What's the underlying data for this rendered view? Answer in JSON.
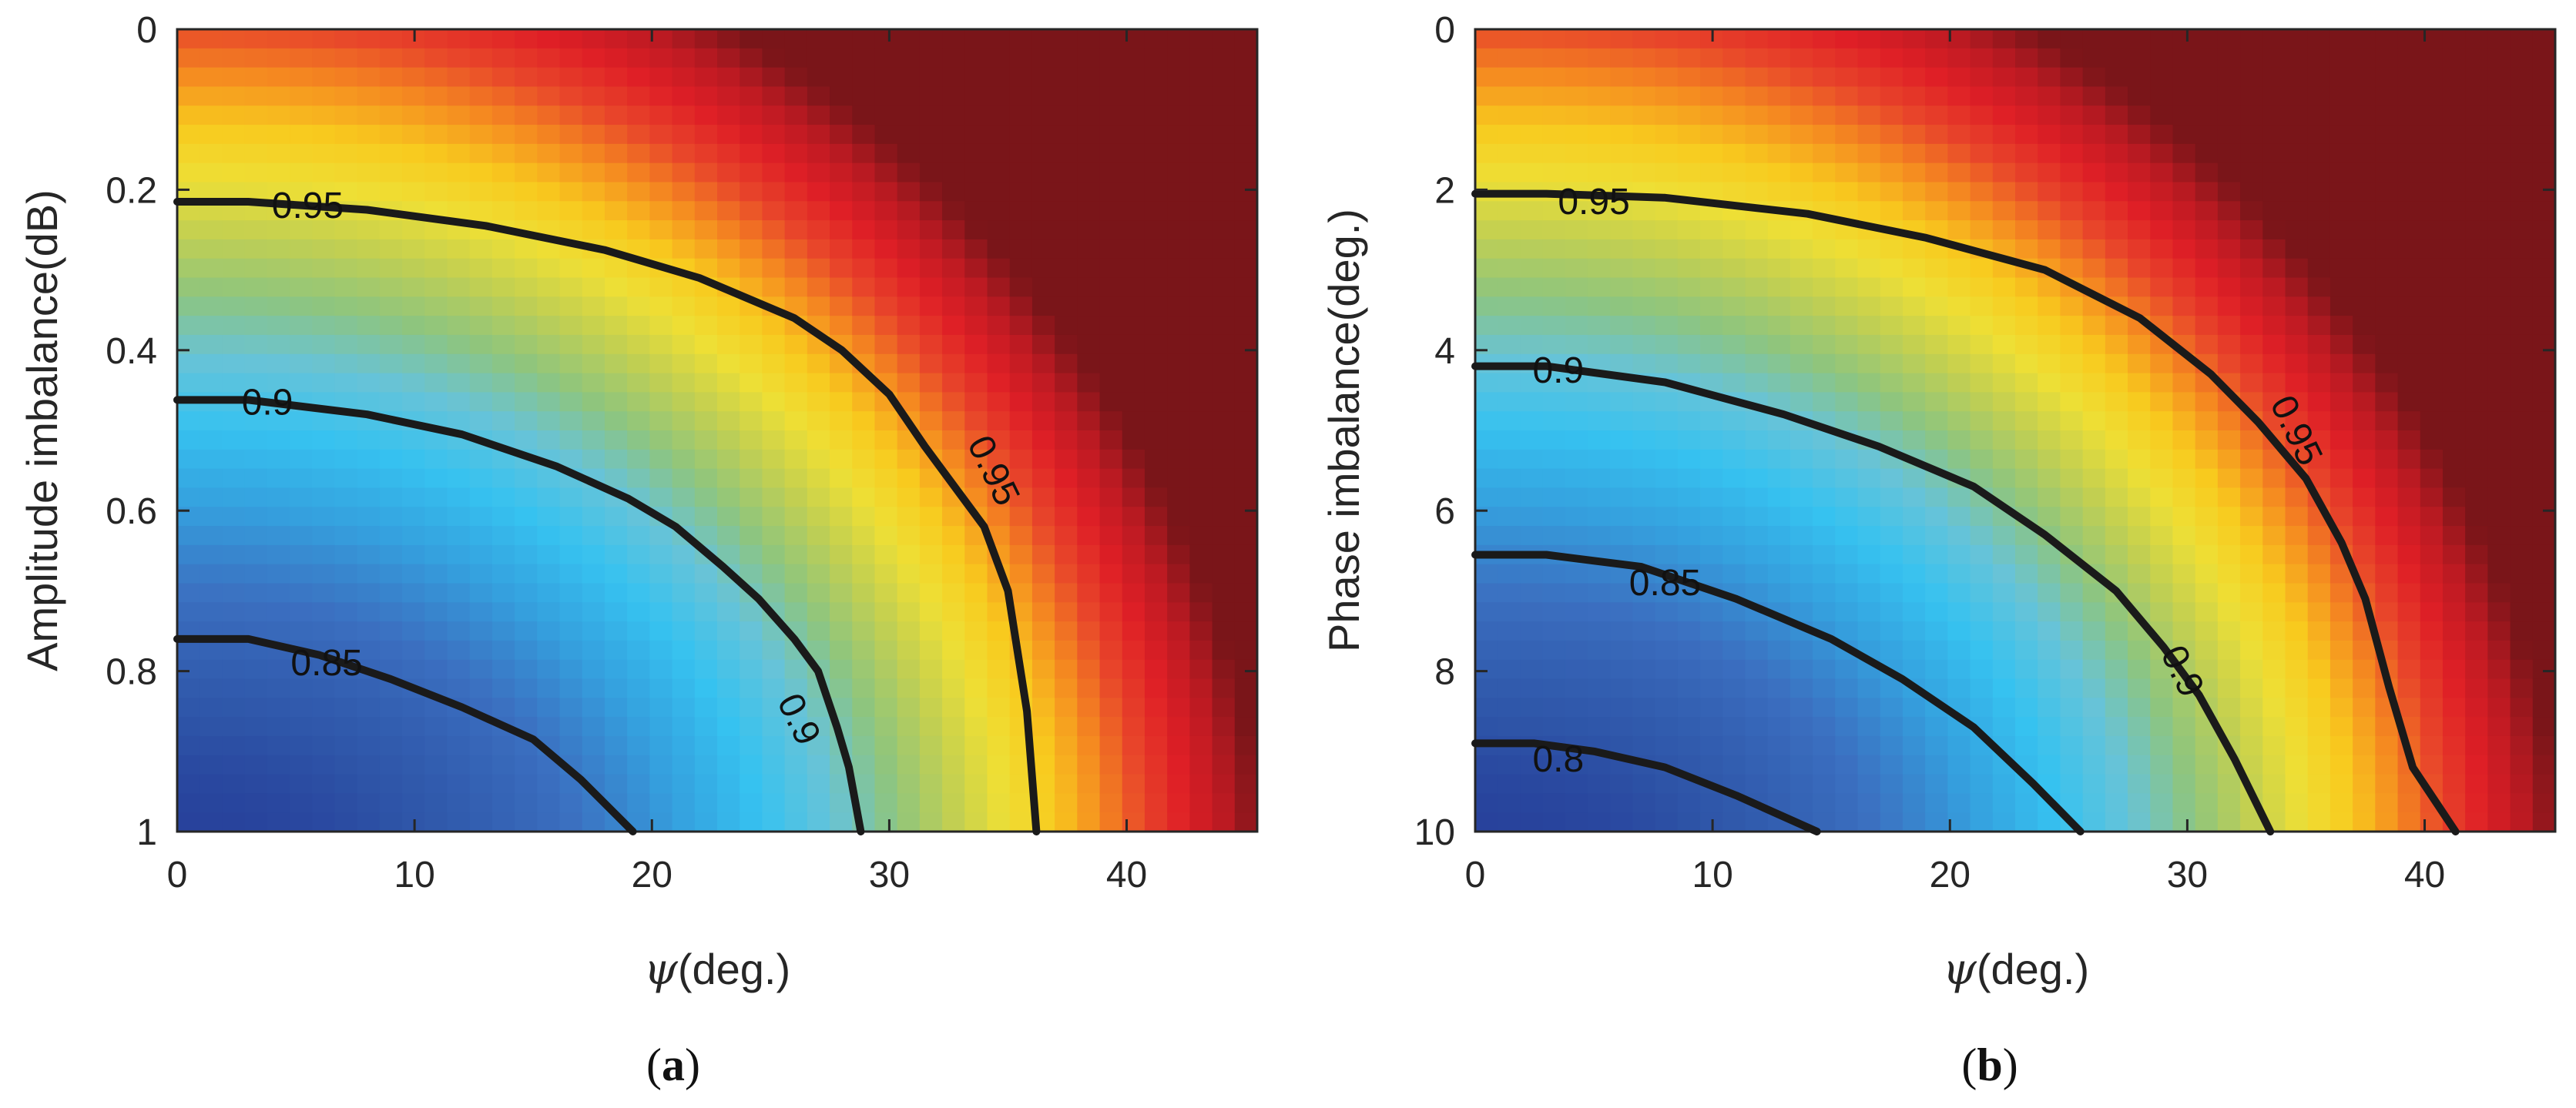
{
  "chart_data": [
    {
      "type": "heatmap",
      "panel_label": "a",
      "caption_open": "(",
      "caption_close": ")",
      "xlabel_symbol": "ψ",
      "xlabel_unit": "(deg.)",
      "ylabel": "Amplitude imbalance(dB)",
      "xlim": [
        0,
        45.5
      ],
      "ylim": [
        1,
        0
      ],
      "xticks": [
        0,
        10,
        20,
        30,
        40
      ],
      "yticks": [
        0,
        0.2,
        0.4,
        0.6,
        0.8,
        1
      ],
      "ytick_labels": [
        "0",
        "0.2",
        "0.4",
        "0.6",
        "0.8",
        "1"
      ],
      "grid": false,
      "contours": [
        {
          "level_label": "0.95",
          "points": [
            [
              0,
              0.215
            ],
            [
              3,
              0.215
            ],
            [
              8,
              0.225
            ],
            [
              13,
              0.245
            ],
            [
              18,
              0.275
            ],
            [
              22,
              0.31
            ],
            [
              26,
              0.36
            ],
            [
              28,
              0.4
            ],
            [
              30,
              0.455
            ],
            [
              31.5,
              0.52
            ],
            [
              33,
              0.58
            ],
            [
              34,
              0.62
            ],
            [
              35,
              0.7
            ],
            [
              35.8,
              0.85
            ],
            [
              36.2,
              1.0
            ]
          ],
          "label_at": [
            5.5,
            0.22
          ]
        },
        {
          "level_label": "0.9",
          "points": [
            [
              0,
              0.462
            ],
            [
              3,
              0.462
            ],
            [
              8,
              0.48
            ],
            [
              12,
              0.505
            ],
            [
              16,
              0.545
            ],
            [
              19,
              0.585
            ],
            [
              21,
              0.62
            ],
            [
              23,
              0.67
            ],
            [
              24.5,
              0.71
            ],
            [
              26,
              0.76
            ],
            [
              27,
              0.8
            ],
            [
              27.8,
              0.87
            ],
            [
              28.3,
              0.92
            ],
            [
              28.8,
              1.0
            ]
          ],
          "label_at": [
            3.8,
            0.465
          ]
        },
        {
          "level_label": "0.85",
          "points": [
            [
              0,
              0.76
            ],
            [
              3,
              0.76
            ],
            [
              6,
              0.78
            ],
            [
              9,
              0.81
            ],
            [
              12,
              0.845
            ],
            [
              15,
              0.885
            ],
            [
              17,
              0.935
            ],
            [
              19.2,
              1.0
            ]
          ],
          "label_at": [
            6.3,
            0.79
          ]
        }
      ],
      "contour_label_positions": [
        {
          "label": "0.95",
          "x": 34.4,
          "y": 0.55
        },
        {
          "label": "0.9",
          "x": 26.2,
          "y": 0.86
        }
      ]
    },
    {
      "type": "heatmap",
      "panel_label": "b",
      "caption_open": "(",
      "caption_close": ")",
      "xlabel_symbol": "ψ",
      "xlabel_unit": "(deg.)",
      "ylabel": "Phase imbalance(deg.)",
      "xlim": [
        0,
        45.5
      ],
      "ylim": [
        10,
        0
      ],
      "xticks": [
        0,
        10,
        20,
        30,
        40
      ],
      "yticks": [
        0,
        2,
        4,
        6,
        8,
        10
      ],
      "ytick_labels": [
        "0",
        "2",
        "4",
        "6",
        "8",
        "10"
      ],
      "grid": false,
      "contours": [
        {
          "level_label": "0.95",
          "points": [
            [
              0,
              2.05
            ],
            [
              3,
              2.05
            ],
            [
              8,
              2.1
            ],
            [
              14,
              2.3
            ],
            [
              19,
              2.6
            ],
            [
              24,
              3.0
            ],
            [
              28,
              3.6
            ],
            [
              31,
              4.3
            ],
            [
              33,
              4.9
            ],
            [
              35,
              5.6
            ],
            [
              36.5,
              6.4
            ],
            [
              37.5,
              7.1
            ],
            [
              38.5,
              8.2
            ],
            [
              39.5,
              9.2
            ],
            [
              41.3,
              10
            ]
          ],
          "label_at": [
            5.0,
            2.15
          ]
        },
        {
          "level_label": "0.9",
          "points": [
            [
              0,
              4.2
            ],
            [
              3,
              4.2
            ],
            [
              8,
              4.4
            ],
            [
              13,
              4.8
            ],
            [
              17,
              5.2
            ],
            [
              21,
              5.7
            ],
            [
              24,
              6.3
            ],
            [
              27,
              7.0
            ],
            [
              29,
              7.7
            ],
            [
              30.5,
              8.3
            ],
            [
              32,
              9.1
            ],
            [
              33.5,
              10
            ]
          ],
          "label_at": [
            3.5,
            4.25
          ]
        },
        {
          "level_label": "0.85",
          "points": [
            [
              0,
              6.55
            ],
            [
              3,
              6.55
            ],
            [
              7,
              6.7
            ],
            [
              11,
              7.1
            ],
            [
              15,
              7.6
            ],
            [
              18,
              8.1
            ],
            [
              21,
              8.7
            ],
            [
              23.5,
              9.4
            ],
            [
              25.5,
              10
            ]
          ],
          "label_at": [
            8.0,
            6.9
          ]
        },
        {
          "level_label": "0.8",
          "points": [
            [
              0,
              8.9
            ],
            [
              2.5,
              8.9
            ],
            [
              5,
              9.0
            ],
            [
              8,
              9.2
            ],
            [
              11,
              9.55
            ],
            [
              14.4,
              10
            ]
          ],
          "label_at": [
            3.5,
            9.1
          ]
        }
      ],
      "contour_label_positions": [
        {
          "label": "0.95",
          "x": 34.6,
          "y": 5.0
        },
        {
          "label": "0.9",
          "x": 29.8,
          "y": 8.0
        }
      ]
    }
  ],
  "colormap": [
    "#1f2a8c",
    "#2e55a8",
    "#3b6fc0",
    "#35a0de",
    "#36c2f0",
    "#67c3d8",
    "#8ec57e",
    "#c1cf52",
    "#eedf35",
    "#f8ca1e",
    "#f58b20",
    "#e8462a",
    "#df1f26",
    "#bc1a22",
    "#7a1519"
  ]
}
